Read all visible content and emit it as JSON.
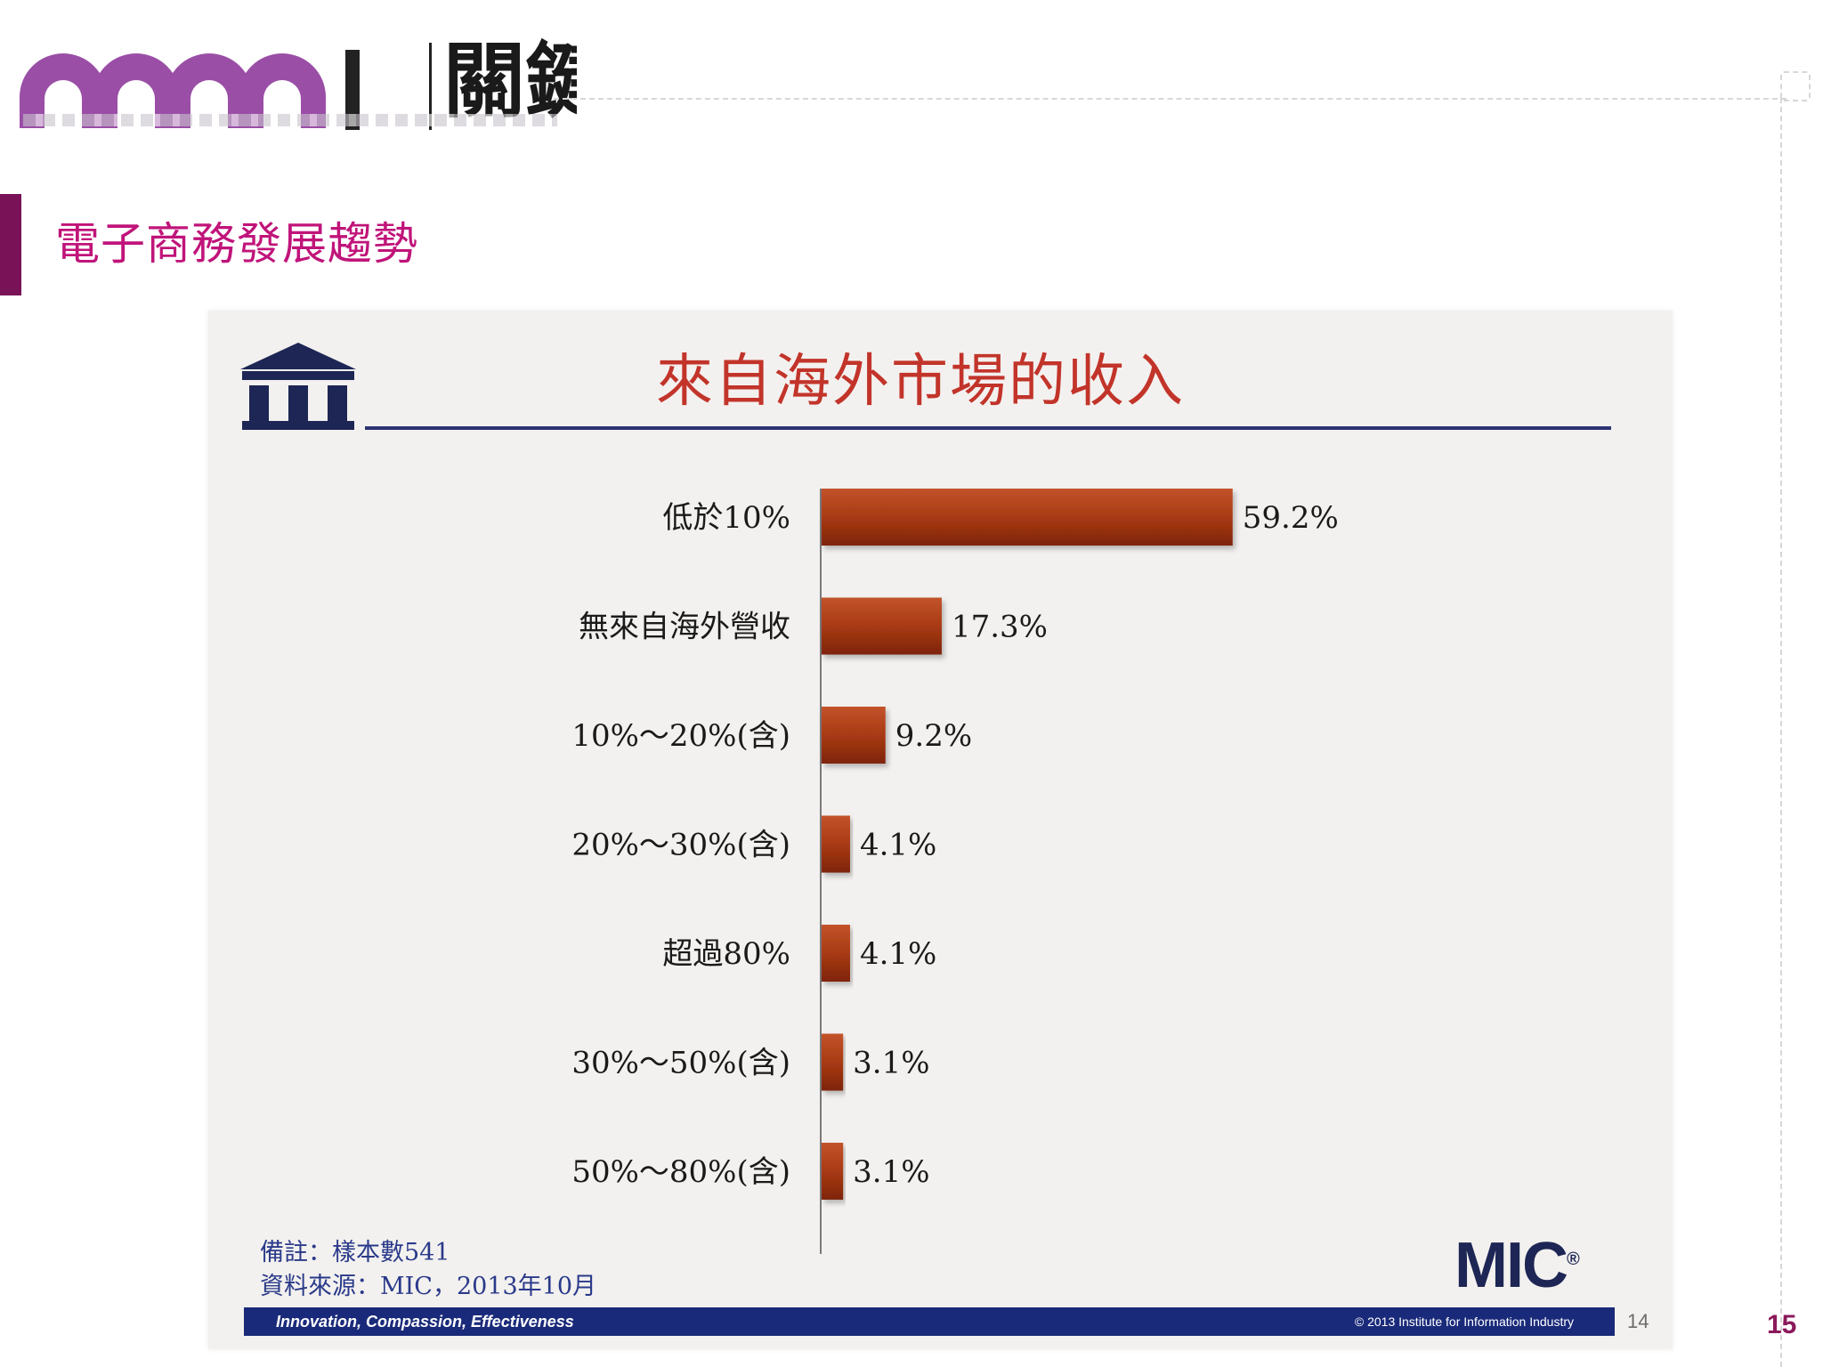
{
  "header": {
    "logo_text": "關鍵",
    "section_title": "電子商務發展趨勢",
    "page_number": "15"
  },
  "slide": {
    "notes": [
      "備註：樣本數541",
      "資料來源：MIC，2013年10月"
    ],
    "brand": "MIC",
    "brand_mark": "®",
    "footer_slogan": "Innovation, Compassion, Effectiveness",
    "footer_copyright": "© 2013 Institute for Information Industry",
    "slide_number": "14",
    "colors": {
      "bar": "#a83a14",
      "title": "#c2342a",
      "navy": "#1d2654"
    }
  },
  "chart_data": {
    "type": "bar",
    "orientation": "horizontal",
    "title": "來自海外市場的收入",
    "categories": [
      "低於10%",
      "無來自海外營收",
      "10%～20%(含)",
      "20%～30%(含)",
      "超過80%",
      "30%～50%(含)",
      "50%～80%(含)"
    ],
    "values": [
      59.2,
      17.3,
      9.2,
      4.1,
      4.1,
      3.1,
      3.1
    ],
    "value_labels": [
      "59.2%",
      "17.3%",
      "9.2%",
      "4.1%",
      "4.1%",
      "3.1%",
      "3.1%"
    ],
    "unit": "%",
    "xlim": [
      0,
      100
    ],
    "grid": false,
    "legend": "none"
  }
}
